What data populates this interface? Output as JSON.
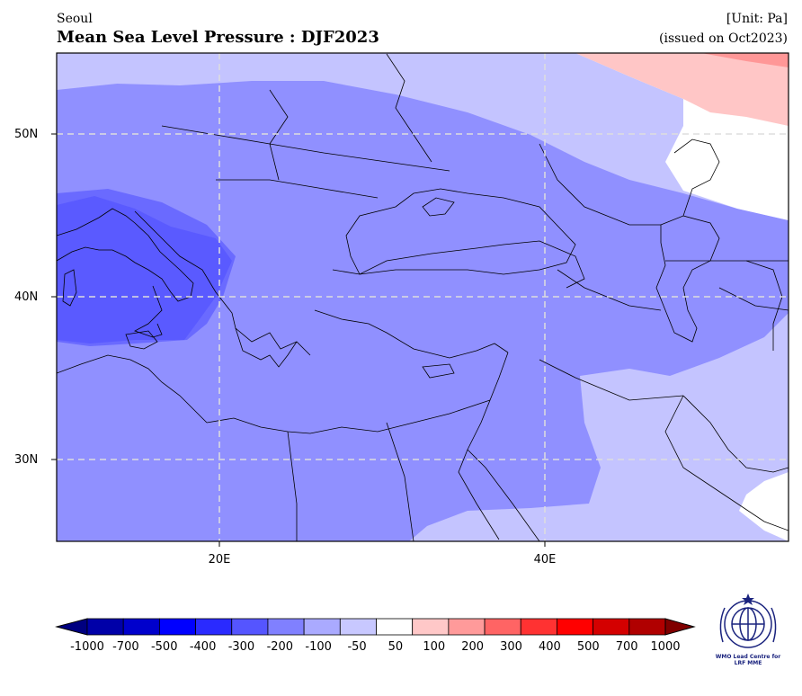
{
  "header": {
    "location": "Seoul",
    "title": "Mean Sea Level Pressure : DJF2023",
    "unit": "[Unit: Pa]",
    "issued": "(issued on Oct2023)"
  },
  "map": {
    "region": "Mediterranean / Middle East",
    "lat_ticks": [
      "50N",
      "40N",
      "30N"
    ],
    "lon_ticks": [
      "20E",
      "40E"
    ],
    "gridlines": true,
    "extent": {
      "lon_min": 10,
      "lon_max": 55,
      "lat_min": 25,
      "lat_max": 55
    },
    "colors": {
      "neg_50_100": "#c4c4ff",
      "neg_100_200": "#9090ff",
      "neg_200_300": "#8080f8",
      "neg_300_400": "#5a5aff",
      "pos_50_100": "#ffc6c6",
      "pos_100_200": "#ff9797"
    }
  },
  "colorbar": {
    "labels": [
      "-1000",
      "-700",
      "-500",
      "-400",
      "-300",
      "-200",
      "-100",
      "-50",
      "50",
      "100",
      "200",
      "300",
      "400",
      "500",
      "700",
      "1000"
    ],
    "colors": [
      "#0000a8",
      "#0000cc",
      "#0000ff",
      "#2a2aff",
      "#5555ff",
      "#8080ff",
      "#aaaaff",
      "#c8c8ff",
      "#ffffff",
      "#ffc8c8",
      "#ff9a9a",
      "#ff6464",
      "#ff3232",
      "#ff0000",
      "#d40000",
      "#b00000"
    ],
    "low_extend_color": "#000080",
    "high_extend_color": "#800000"
  },
  "logo": {
    "text_line1": "WMO Lead Centre for",
    "text_line2": "LRF MME"
  }
}
